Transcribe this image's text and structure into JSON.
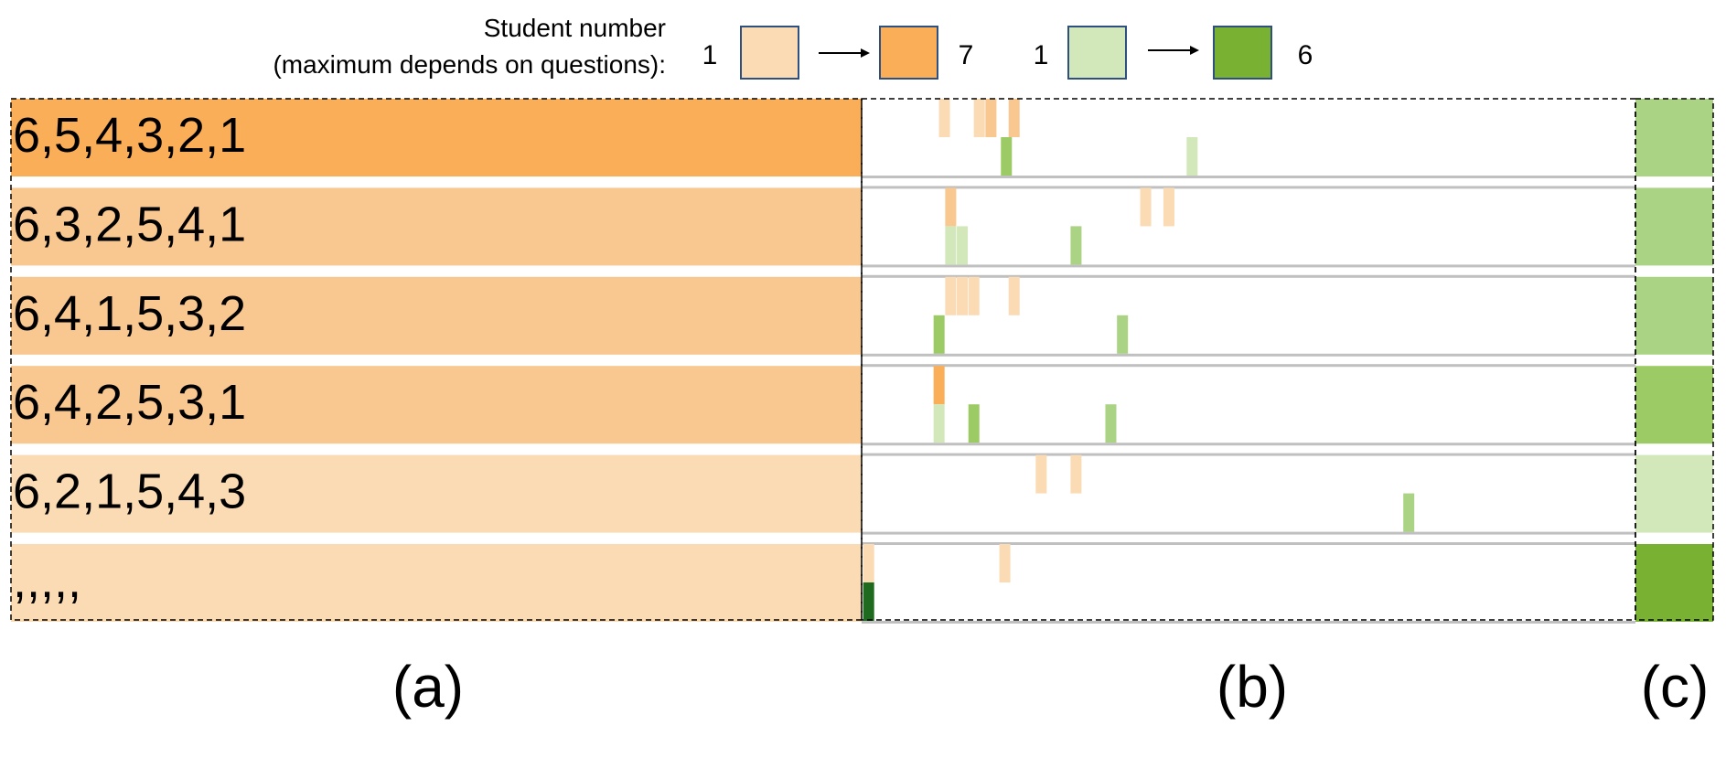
{
  "legend": {
    "title_line1": "Student number",
    "title_line2": "(maximum depends on questions):",
    "orange": {
      "min": "1",
      "max": "7",
      "color_min": "#FADBB4",
      "color_max": "#FBAE58"
    },
    "green": {
      "min": "1",
      "max": "6",
      "color_min": "#D2E8BB",
      "color_max": "#79B232"
    }
  },
  "colors": {
    "orange_1": "#FADBB4",
    "orange_2": "#F9C790",
    "orange_max": "#FBAE58",
    "green_1": "#D2E8BB",
    "green_2": "#AAD384",
    "green_3": "#9CCB65",
    "green_4": "#8FC45A",
    "green_max": "#79B232",
    "green_dark": "#1E6A1E",
    "separator": "#C0C0C0"
  },
  "rows": [
    {
      "sequence": "6,5,4,3,2,1",
      "seq_color": "orange_max",
      "summary_color": "green_2",
      "orange_ticks": [
        {
          "x": 0.1,
          "c": "orange_1"
        },
        {
          "x": 0.145,
          "c": "orange_1"
        },
        {
          "x": 0.16,
          "c": "orange_2"
        },
        {
          "x": 0.19,
          "c": "orange_2"
        }
      ],
      "green_ticks": [
        {
          "x": 0.18,
          "c": "green_3"
        },
        {
          "x": 0.42,
          "c": "green_1"
        }
      ]
    },
    {
      "sequence": "6,3,2,5,4,1",
      "seq_color": "orange_2",
      "summary_color": "green_2",
      "orange_ticks": [
        {
          "x": 0.108,
          "c": "orange_2"
        },
        {
          "x": 0.36,
          "c": "orange_1"
        },
        {
          "x": 0.39,
          "c": "orange_1"
        }
      ],
      "green_ticks": [
        {
          "x": 0.108,
          "c": "green_1"
        },
        {
          "x": 0.123,
          "c": "green_1"
        },
        {
          "x": 0.27,
          "c": "green_2"
        }
      ]
    },
    {
      "sequence": "6,4,1,5,3,2",
      "seq_color": "orange_2",
      "summary_color": "green_2",
      "orange_ticks": [
        {
          "x": 0.108,
          "c": "orange_1"
        },
        {
          "x": 0.123,
          "c": "orange_1"
        },
        {
          "x": 0.138,
          "c": "orange_1"
        },
        {
          "x": 0.19,
          "c": "orange_1"
        }
      ],
      "green_ticks": [
        {
          "x": 0.093,
          "c": "green_3"
        },
        {
          "x": 0.33,
          "c": "green_2"
        }
      ]
    },
    {
      "sequence": "6,4,2,5,3,1",
      "seq_color": "orange_2",
      "summary_color": "green_3",
      "orange_ticks": [
        {
          "x": 0.093,
          "c": "orange_max"
        }
      ],
      "green_ticks": [
        {
          "x": 0.093,
          "c": "green_1"
        },
        {
          "x": 0.138,
          "c": "green_3"
        },
        {
          "x": 0.315,
          "c": "green_2"
        }
      ]
    },
    {
      "sequence": "6,2,1,5,4,3",
      "seq_color": "orange_1",
      "summary_color": "green_1",
      "orange_ticks": [
        {
          "x": 0.225,
          "c": "orange_1"
        },
        {
          "x": 0.27,
          "c": "orange_1"
        }
      ],
      "green_ticks": [
        {
          "x": 0.7,
          "c": "green_2"
        }
      ]
    },
    {
      "sequence": ",,,,,",
      "seq_color": "orange_1",
      "summary_color": "green_max",
      "orange_ticks": [
        {
          "x": 0.002,
          "c": "orange_1"
        },
        {
          "x": 0.178,
          "c": "orange_1"
        }
      ],
      "green_ticks": [
        {
          "x": 0.002,
          "c": "green_dark"
        }
      ]
    }
  ],
  "panel_labels": {
    "a": "(a)",
    "b": "(b)",
    "c": "(c)"
  }
}
